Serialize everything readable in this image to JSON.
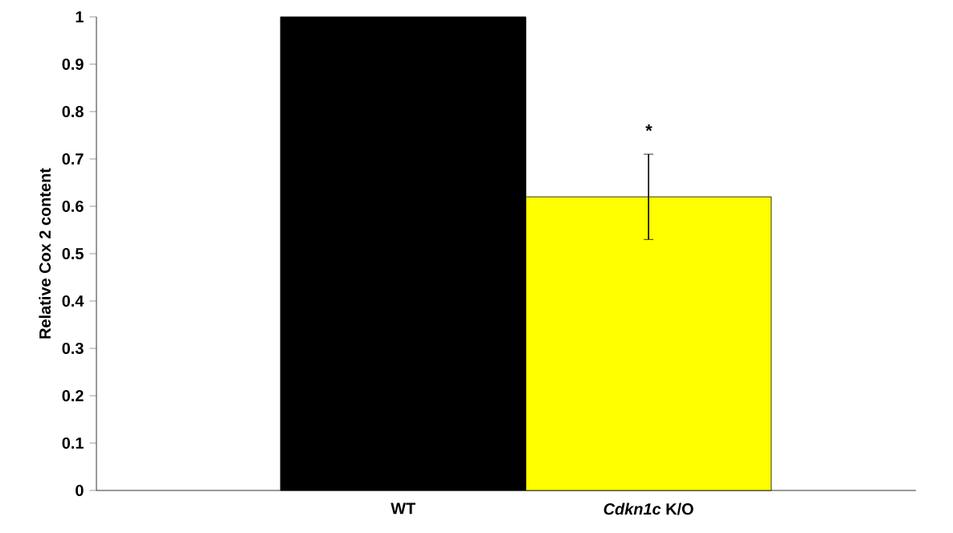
{
  "chart_data": {
    "type": "bar",
    "ylabel": "Relative Cox 2 content",
    "categories": [
      "WT",
      "*Cdkn1c* K/O"
    ],
    "values": [
      1,
      0.62
    ],
    "colors": [
      "#000000",
      "#ffff00"
    ],
    "errors": [
      null,
      0.09
    ],
    "ylim": [
      0,
      1
    ],
    "yticks": [
      0,
      0.1,
      0.2,
      0.3,
      0.4,
      0.5,
      0.6,
      0.7,
      0.8,
      0.9,
      1
    ],
    "grid": false,
    "annotations": [
      "*"
    ]
  }
}
